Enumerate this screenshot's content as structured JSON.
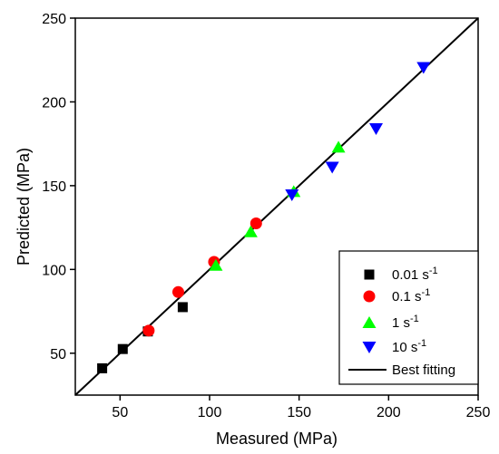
{
  "chart_data": {
    "type": "scatter",
    "xlabel": "Measured (MPa)",
    "ylabel": "Predicted (MPa)",
    "xlim": [
      25,
      250
    ],
    "ylim": [
      25,
      250
    ],
    "x_ticks": [
      50,
      100,
      150,
      200,
      250
    ],
    "y_ticks": [
      50,
      100,
      150,
      200,
      250
    ],
    "grid": false,
    "legend_position": "bottom-right",
    "series": [
      {
        "name": "0.01 s",
        "superscript": "-1",
        "marker": "square",
        "color": "#000000",
        "points": [
          [
            40,
            41
          ],
          [
            51.5,
            52.5
          ],
          [
            65.5,
            63
          ],
          [
            85,
            77.5
          ]
        ]
      },
      {
        "name": "0.1 s",
        "superscript": "-1",
        "marker": "circle",
        "color": "#ff0000",
        "points": [
          [
            66,
            63.5
          ],
          [
            82.5,
            86.5
          ],
          [
            102.5,
            104.5
          ],
          [
            126,
            127.5
          ]
        ]
      },
      {
        "name": "1 s",
        "superscript": "-1",
        "marker": "triangle-up",
        "color": "#00ff00",
        "points": [
          [
            103.5,
            102.5
          ],
          [
            123,
            122.5
          ],
          [
            147,
            146.5
          ],
          [
            172,
            173
          ]
        ]
      },
      {
        "name": "10 s",
        "superscript": "-1",
        "marker": "triangle-down",
        "color": "#0000ff",
        "points": [
          [
            146,
            144.5
          ],
          [
            168.5,
            161
          ],
          [
            193,
            184
          ],
          [
            219.5,
            220.5
          ]
        ]
      }
    ],
    "fit_line": {
      "name": "Best fitting",
      "color": "#000000",
      "points": [
        [
          25,
          25
        ],
        [
          250,
          250
        ]
      ]
    }
  }
}
